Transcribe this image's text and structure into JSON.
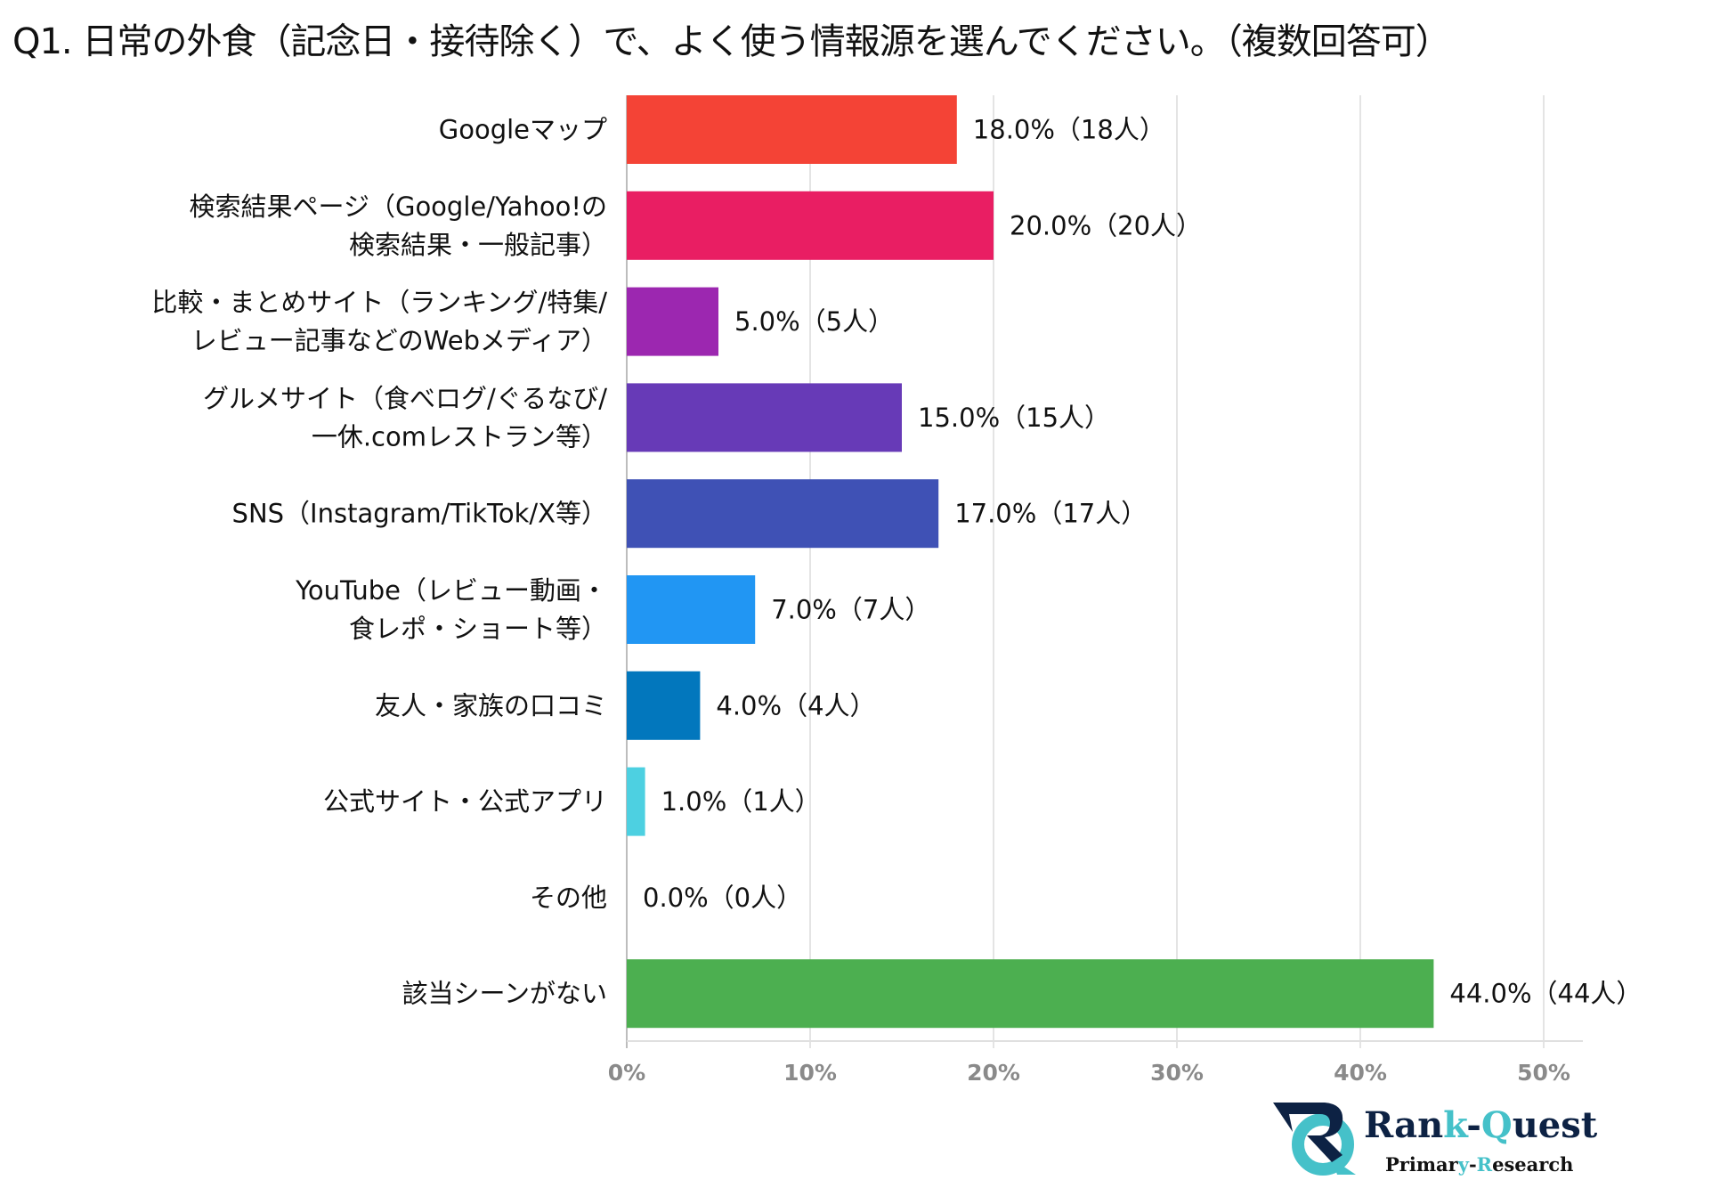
{
  "chart_data": {
    "type": "bar",
    "orientation": "horizontal",
    "title": "Q1. 日常の外食（記念日・接待除く）で、よく使う情報源を選んでください。（複数回答可）",
    "categories": [
      [
        "Googleマップ"
      ],
      [
        "検索結果ページ（Google/Yahoo!の",
        "検索結果・一般記事）"
      ],
      [
        "比較・まとめサイト（ランキング/特集/",
        "レビュー記事などのWebメディア）"
      ],
      [
        "グルメサイト（食べログ/ぐるなび/",
        "一休.comレストラン等）"
      ],
      [
        "SNS（Instagram/TikTok/X等）"
      ],
      [
        "YouTube（レビュー動画・",
        "食レポ・ショート等）"
      ],
      [
        "友人・家族の口コミ"
      ],
      [
        "公式サイト・公式アプリ"
      ],
      [
        "その他"
      ],
      [
        "該当シーンがない"
      ]
    ],
    "values": [
      18.0,
      20.0,
      5.0,
      15.0,
      17.0,
      7.0,
      4.0,
      1.0,
      0.0,
      44.0
    ],
    "data_labels": [
      "18.0%（18人）",
      "20.0%（20人）",
      "5.0%（5人）",
      "15.0%（15人）",
      "17.0%（17人）",
      "7.0%（7人）",
      "4.0%（4人）",
      "1.0%（1人）",
      "0.0%（0人）",
      "44.0%（44人）"
    ],
    "colors": [
      "#f44336",
      "#e91e63",
      "#9c27b0",
      "#673ab7",
      "#3f51b5",
      "#2196f3",
      "#0277bd",
      "#4dd0e1",
      "#9e9e9e",
      "#4caf50"
    ],
    "xlim": [
      0,
      50
    ],
    "xticks": [
      0,
      10,
      20,
      30,
      40,
      50
    ],
    "xtick_labels": [
      "0%",
      "10%",
      "20%",
      "30%",
      "40%",
      "50%"
    ],
    "grid": true,
    "xlabel": "",
    "ylabel": ""
  },
  "logo": {
    "name": "Rank-Quest",
    "sub": "Primary-Research",
    "colors": {
      "navy": "#0d2244",
      "teal": "#45c1c9"
    }
  }
}
